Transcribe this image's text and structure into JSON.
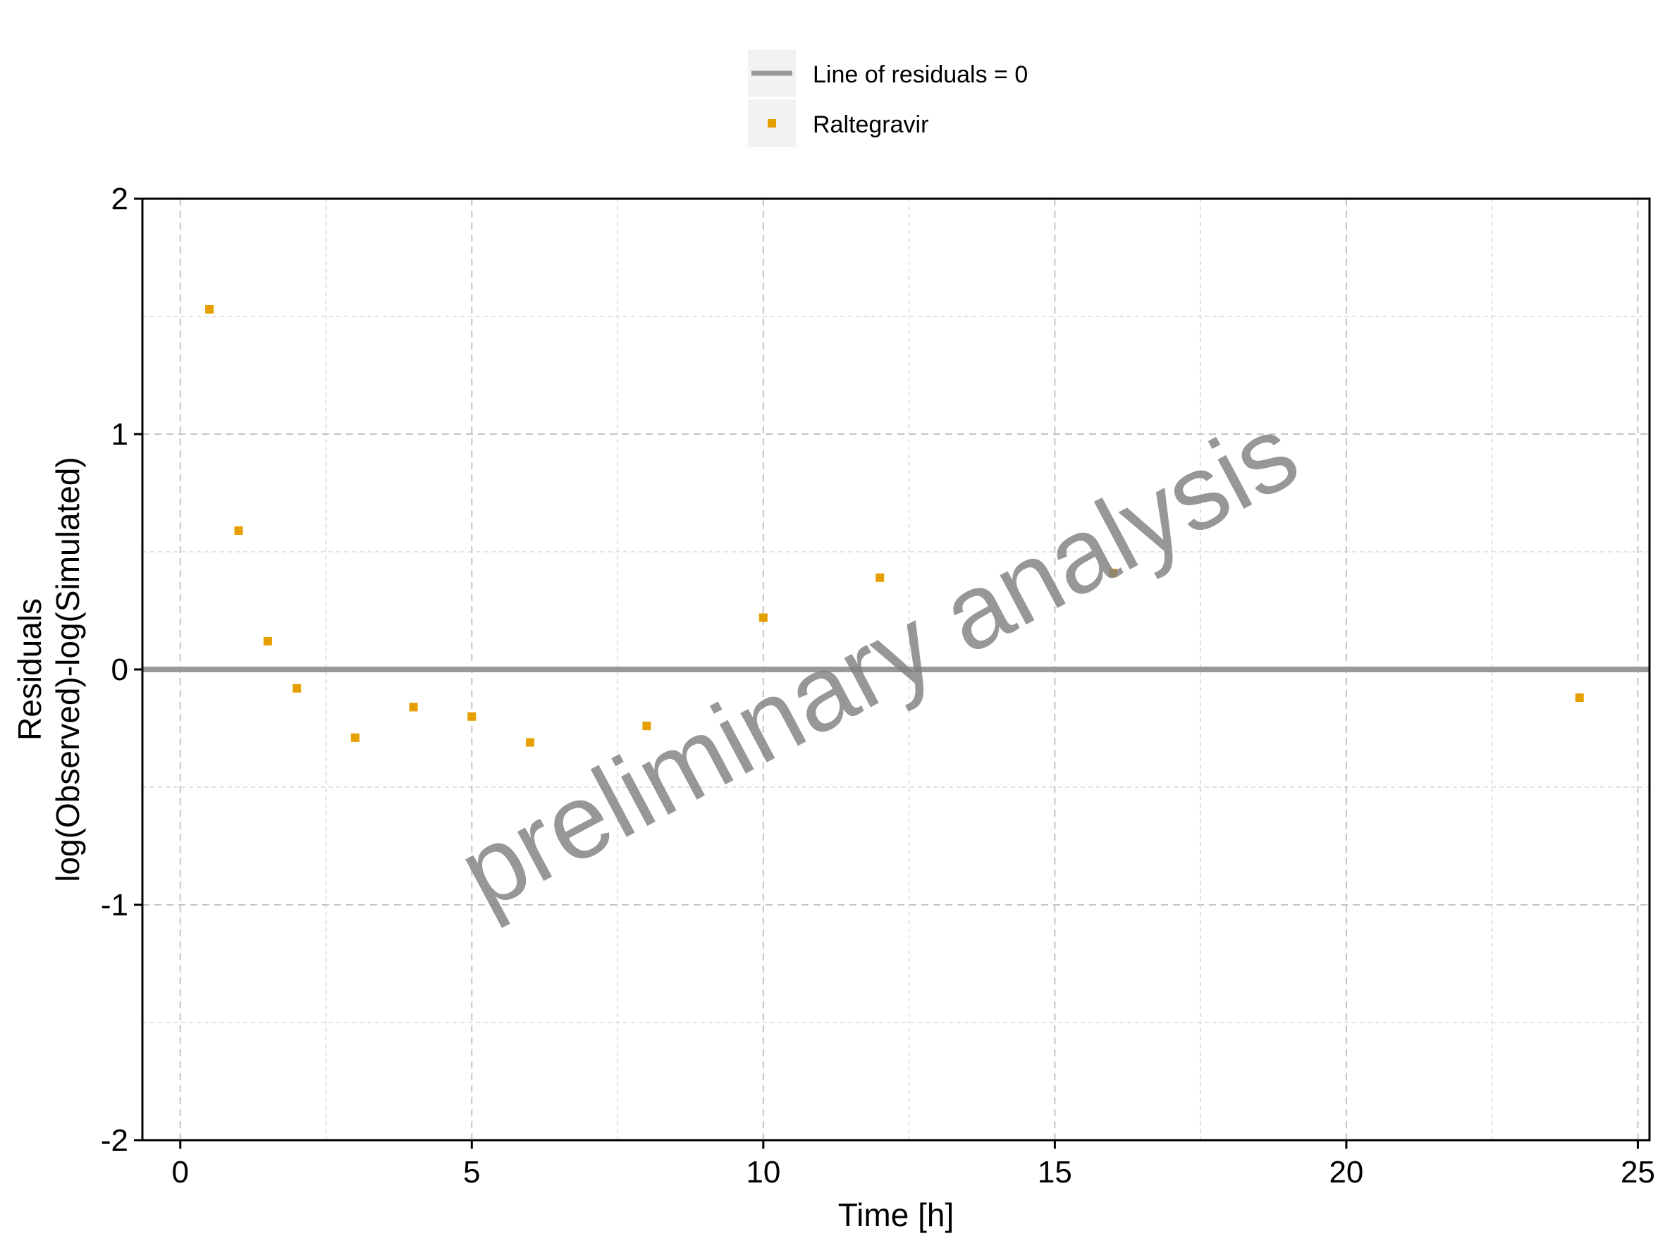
{
  "chart_data": {
    "type": "scatter",
    "xlabel": "Time [h]",
    "ylabel_line1": "Residuals",
    "ylabel_line2": "log(Observed)-log(Simulated)",
    "xlim": [
      -0.65,
      25.2
    ],
    "ylim": [
      -2,
      2
    ],
    "x_ticks": [
      0,
      5,
      10,
      15,
      20,
      25
    ],
    "y_ticks": [
      -2,
      -1,
      0,
      1,
      2
    ],
    "x_tick_labels": [
      "0",
      "5",
      "10",
      "15",
      "20",
      "25"
    ],
    "y_tick_labels": [
      "-2",
      "-1",
      "0",
      "1",
      "2"
    ],
    "grid": true,
    "legend_position": "top-center",
    "reference_line": {
      "label": "Line of residuals = 0",
      "y": 0,
      "color": "#999999"
    },
    "series": [
      {
        "name": "Raltegravir",
        "color": "#E69F00",
        "marker": "square",
        "x": [
          0.5,
          1,
          1.5,
          2,
          3,
          4,
          5,
          6,
          8,
          10,
          12,
          16,
          24
        ],
        "y": [
          1.53,
          0.59,
          0.12,
          -0.08,
          -0.29,
          -0.16,
          -0.2,
          -0.31,
          -0.24,
          0.22,
          0.39,
          0.41,
          -0.12
        ]
      }
    ],
    "watermark": "preliminary analysis"
  }
}
